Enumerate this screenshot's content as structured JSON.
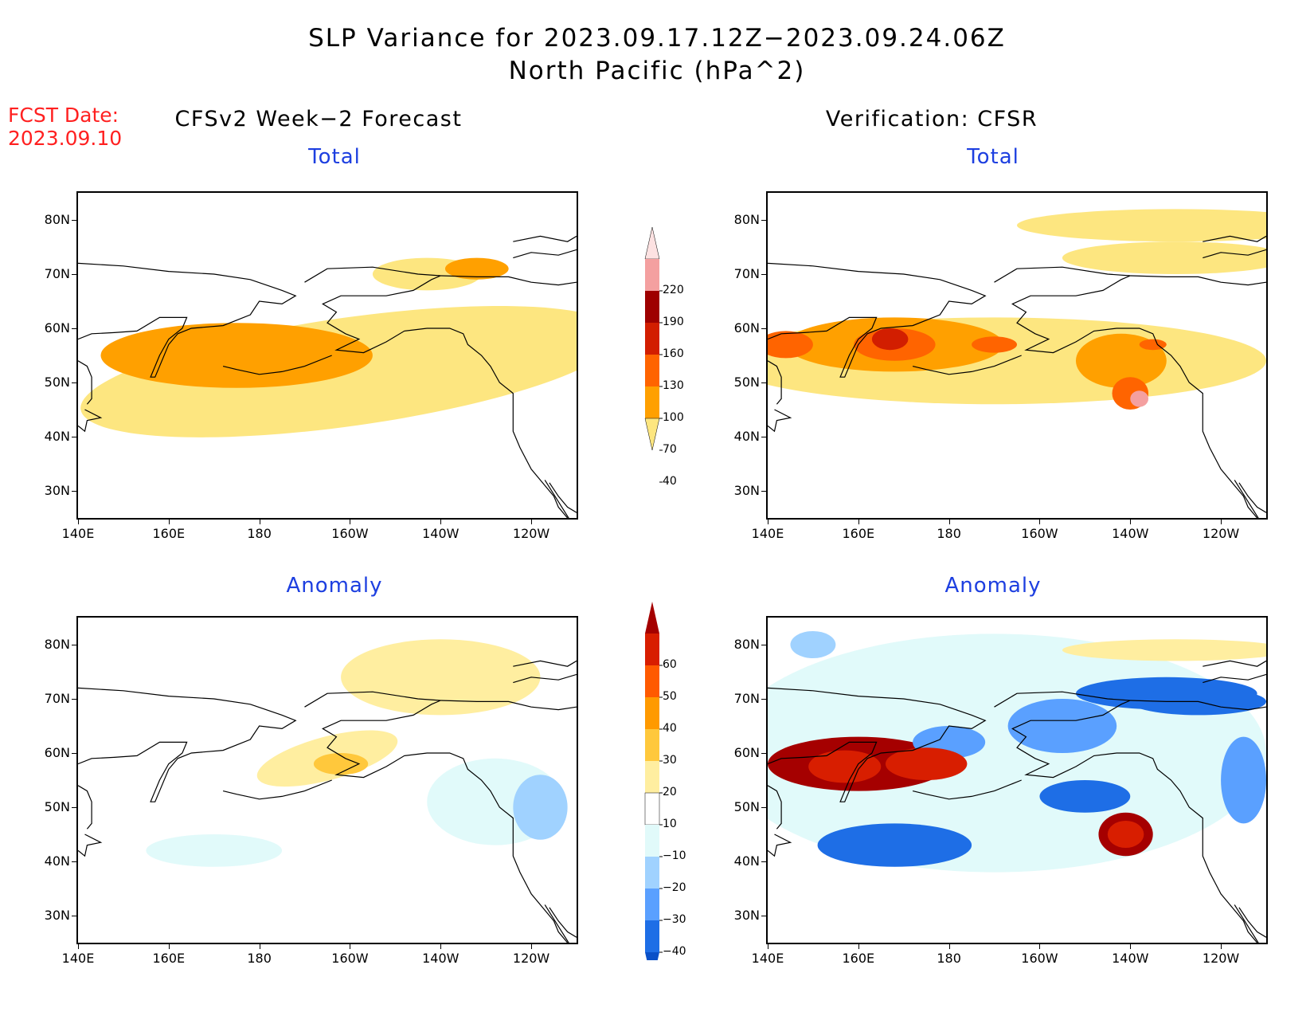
{
  "header": {
    "title_line1": "SLP Variance for 2023.09.17.12Z−2023.09.24.06Z",
    "title_line2": "North Pacific (hPa^2)",
    "fcst_line1": "FCST Date:",
    "fcst_line2": "2023.09.10"
  },
  "columns": {
    "left_title": "CFSv2 Week−2 Forecast",
    "right_title": "Verification: CFSR"
  },
  "panels": [
    {
      "key": "fcst_total",
      "subtitle": "Total",
      "colormap": "total",
      "blobs": [
        {
          "type": "ellipse",
          "cx": 200,
          "cy": 52,
          "rx": 60,
          "ry": 10,
          "rot": -8,
          "level": 1
        },
        {
          "type": "ellipse",
          "cx": 175,
          "cy": 55,
          "rx": 30,
          "ry": 6,
          "rot": 0,
          "level": 2
        },
        {
          "type": "ellipse",
          "cx": 217,
          "cy": 70,
          "rx": 12,
          "ry": 3,
          "rot": 0,
          "level": 1
        },
        {
          "type": "ellipse",
          "cx": 228,
          "cy": 71,
          "rx": 7,
          "ry": 2,
          "rot": 0,
          "level": 2
        }
      ]
    },
    {
      "key": "cfsr_total",
      "subtitle": "Total",
      "colormap": "total",
      "blobs": [
        {
          "type": "ellipse",
          "cx": 190,
          "cy": 54,
          "rx": 60,
          "ry": 8,
          "rot": 0,
          "level": 1
        },
        {
          "type": "ellipse",
          "cx": 230,
          "cy": 79,
          "rx": 35,
          "ry": 3,
          "rot": 0,
          "level": 1
        },
        {
          "type": "ellipse",
          "cx": 168,
          "cy": 57,
          "rx": 24,
          "ry": 5,
          "rot": 0,
          "level": 2
        },
        {
          "type": "ellipse",
          "cx": 218,
          "cy": 54,
          "rx": 10,
          "ry": 5,
          "rot": 0,
          "level": 2
        },
        {
          "type": "ellipse",
          "cx": 144,
          "cy": 57,
          "rx": 6,
          "ry": 2.5,
          "rot": 0,
          "level": 3
        },
        {
          "type": "ellipse",
          "cx": 168,
          "cy": 57,
          "rx": 9,
          "ry": 3,
          "rot": 0,
          "level": 3
        },
        {
          "type": "ellipse",
          "cx": 220,
          "cy": 48,
          "rx": 4,
          "ry": 3,
          "rot": 0,
          "level": 3
        },
        {
          "type": "ellipse",
          "cx": 167,
          "cy": 58,
          "rx": 4,
          "ry": 2,
          "rot": 0,
          "level": 4
        },
        {
          "type": "ellipse",
          "cx": 222,
          "cy": 47,
          "rx": 2,
          "ry": 1.5,
          "rot": 0,
          "level": 5
        }
      ]
    },
    {
      "key": "fcst_anom",
      "subtitle": "Anomaly",
      "colormap": "anom",
      "blobs": [
        {
          "type": "ellipse",
          "cx": 220,
          "cy": 74,
          "rx": 22,
          "ry": 7,
          "rot": 0,
          "level": 7
        },
        {
          "type": "ellipse",
          "cx": 195,
          "cy": 59,
          "rx": 16,
          "ry": 4,
          "rot": -15,
          "level": 7
        },
        {
          "type": "ellipse",
          "cx": 198,
          "cy": 58,
          "rx": 6,
          "ry": 2,
          "rot": 0,
          "level": 8
        },
        {
          "type": "ellipse",
          "cx": 232,
          "cy": 51,
          "rx": 15,
          "ry": 8,
          "rot": 0,
          "level": 5
        },
        {
          "type": "ellipse",
          "cx": 170,
          "cy": 42,
          "rx": 15,
          "ry": 3,
          "rot": 0,
          "level": 5
        },
        {
          "type": "ellipse",
          "cx": 242,
          "cy": 50,
          "rx": 6,
          "ry": 6,
          "rot": 0,
          "level": 4
        }
      ]
    },
    {
      "key": "cfsr_anom",
      "subtitle": "Anomaly",
      "colormap": "anom",
      "blobs": [
        {
          "type": "ellipse",
          "cx": 190,
          "cy": 60,
          "rx": 60,
          "ry": 22,
          "rot": 0,
          "level": 5
        },
        {
          "type": "ellipse",
          "cx": 160,
          "cy": 58,
          "rx": 20,
          "ry": 5,
          "rot": 0,
          "level": 9
        },
        {
          "type": "ellipse",
          "cx": 168,
          "cy": 43,
          "rx": 17,
          "ry": 4,
          "rot": 0,
          "level": 3
        },
        {
          "type": "ellipse",
          "cx": 219,
          "cy": 45,
          "rx": 6,
          "ry": 4,
          "rot": 0,
          "level": 9
        },
        {
          "type": "ellipse",
          "cx": 228,
          "cy": 71,
          "rx": 20,
          "ry": 3,
          "rot": 0,
          "level": 3
        },
        {
          "type": "ellipse",
          "cx": 230,
          "cy": 79,
          "rx": 25,
          "ry": 2,
          "rot": 0,
          "level": 7
        }
      ]
    }
  ],
  "axes": {
    "y_labels": [
      "80N",
      "70N",
      "60N",
      "50N",
      "40N",
      "30N"
    ],
    "x_labels": [
      "140E",
      "160E",
      "180",
      "160W",
      "140W",
      "120W"
    ]
  },
  "colorbars": {
    "total": {
      "labels": [
        "220",
        "190",
        "160",
        "130",
        "100",
        "70",
        "40"
      ],
      "colors": [
        "#fde2e2",
        "#f4a0a0",
        "#9e0000",
        "#d21e00",
        "#ff6400",
        "#ffa000",
        "#fde680"
      ]
    },
    "anom": {
      "labels": [
        "60",
        "50",
        "40",
        "30",
        "20",
        "10",
        "−10",
        "−20",
        "−30",
        "−40"
      ],
      "colors": [
        "#a50000",
        "#d81e00",
        "#ff5a00",
        "#ff9a00",
        "#ffc83c",
        "#ffeea0",
        "#ffffff",
        "#e1fafa",
        "#a0d2ff",
        "#5aa0ff",
        "#1e6ee6",
        "#0a50c8"
      ]
    }
  }
}
